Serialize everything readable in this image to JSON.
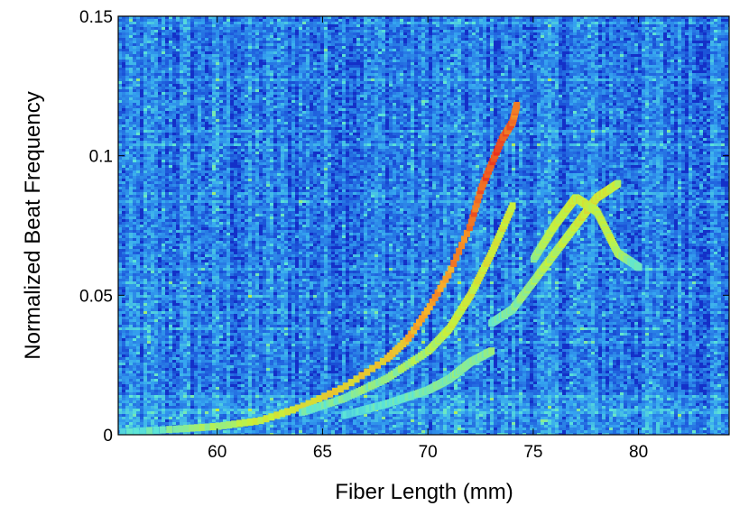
{
  "chart_data": {
    "type": "heatmap",
    "title": "",
    "xlabel": "Fiber Length (mm)",
    "ylabel": "Normalized Beat Frequency",
    "xlim": [
      55.3,
      84.3
    ],
    "ylim": [
      0,
      0.15
    ],
    "xticks": [
      60,
      65,
      70,
      75,
      80
    ],
    "xtick_labels": [
      "60",
      "65",
      "70",
      "75",
      "80"
    ],
    "yticks": [
      0,
      0.05,
      0.1,
      0.15
    ],
    "ytick_labels": [
      "0",
      "0.05",
      "0.1",
      "0.15"
    ],
    "grid": false,
    "legend": false,
    "colormap": [
      "#0a1cb4",
      "#1e5adc",
      "#36a6f0",
      "#5ee6d6",
      "#c6f23c",
      "#f7b12a",
      "#e8281e"
    ],
    "background_color": "#1430c8",
    "ridges": [
      {
        "x": [
          55.5,
          58,
          60,
          62,
          64,
          66,
          68,
          69,
          70,
          71,
          72,
          72.5,
          73,
          73.5,
          74,
          74.2
        ],
        "y": [
          0.001,
          0.002,
          0.003,
          0.005,
          0.01,
          0.017,
          0.027,
          0.034,
          0.045,
          0.058,
          0.075,
          0.088,
          0.097,
          0.106,
          0.112,
          0.118
        ],
        "intensity": [
          0.5,
          0.6,
          0.65,
          0.7,
          0.75,
          0.8,
          0.82,
          0.85,
          0.88,
          0.9,
          0.95,
          0.97,
          1.0,
          1.0,
          0.95,
          0.9
        ]
      },
      {
        "x": [
          64,
          66,
          68,
          70,
          71,
          72,
          73,
          74
        ],
        "y": [
          0.008,
          0.013,
          0.02,
          0.03,
          0.038,
          0.05,
          0.065,
          0.082
        ],
        "intensity": [
          0.55,
          0.6,
          0.62,
          0.66,
          0.7,
          0.72,
          0.75,
          0.7
        ]
      },
      {
        "x": [
          66,
          68,
          70,
          71,
          72,
          73
        ],
        "y": [
          0.007,
          0.011,
          0.016,
          0.02,
          0.026,
          0.03
        ],
        "intensity": [
          0.5,
          0.55,
          0.58,
          0.6,
          0.6,
          0.6
        ]
      },
      {
        "x": [
          73,
          74,
          75,
          76,
          77,
          78,
          79
        ],
        "y": [
          0.04,
          0.045,
          0.055,
          0.065,
          0.075,
          0.085,
          0.09
        ],
        "intensity": [
          0.55,
          0.6,
          0.65,
          0.68,
          0.72,
          0.75,
          0.7
        ]
      },
      {
        "x": [
          75,
          76,
          77,
          78,
          79,
          80
        ],
        "y": [
          0.063,
          0.075,
          0.085,
          0.08,
          0.065,
          0.06
        ],
        "intensity": [
          0.62,
          0.7,
          0.72,
          0.7,
          0.68,
          0.55
        ]
      }
    ]
  }
}
